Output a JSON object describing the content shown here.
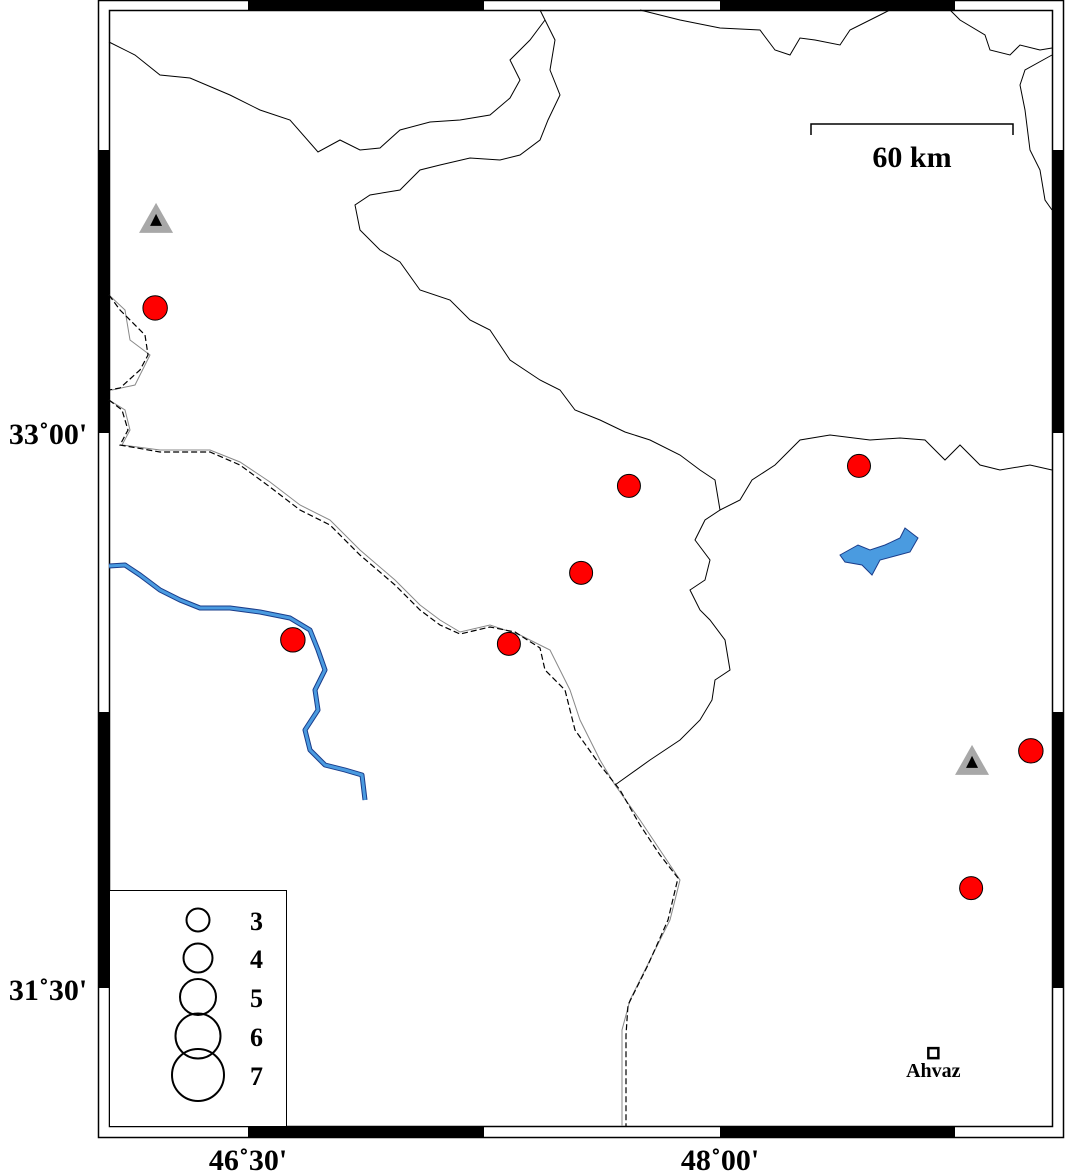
{
  "map": {
    "extent": {
      "lon": [
        46.0,
        49.09
      ],
      "lat": [
        31.13,
        34.14
      ]
    },
    "axis_labels": {
      "lat": [
        {
          "value": 33.0,
          "text": "33˚00'"
        },
        {
          "value": 31.5,
          "text": "31˚30'"
        }
      ],
      "lon": [
        {
          "value": 46.5,
          "text": "46˚30'"
        },
        {
          "value": 48.0,
          "text": "48˚00'"
        }
      ]
    },
    "scale_bar": {
      "label": "60 km"
    },
    "colors": {
      "event": "#ff0000",
      "station": "#a8a8a8",
      "water": "#4a9be0",
      "water_outline": "#1a3c8a"
    },
    "events": [
      {
        "lon": 46.146,
        "lat": 33.338,
        "mag": 3.2
      },
      {
        "lon": 47.701,
        "lat": 32.857,
        "mag": 3.0
      },
      {
        "lon": 47.544,
        "lat": 32.622,
        "mag": 3.0
      },
      {
        "lon": 46.598,
        "lat": 32.441,
        "mag": 3.2
      },
      {
        "lon": 47.307,
        "lat": 32.43,
        "mag": 3.0
      },
      {
        "lon": 48.456,
        "lat": 32.911,
        "mag": 3.0
      },
      {
        "lon": 49.02,
        "lat": 32.141,
        "mag": 3.2
      },
      {
        "lon": 48.824,
        "lat": 31.77,
        "mag": 3.0
      }
    ],
    "stations": [
      {
        "lon": 46.149,
        "lat": 33.576
      },
      {
        "lon": 48.827,
        "lat": 32.111
      }
    ],
    "cities": [
      {
        "name": "Ahvaz",
        "lon": 48.7,
        "lat": 31.324
      }
    ],
    "legend": {
      "magnitudes": [
        "3",
        "4",
        "5",
        "6",
        "7"
      ]
    }
  }
}
